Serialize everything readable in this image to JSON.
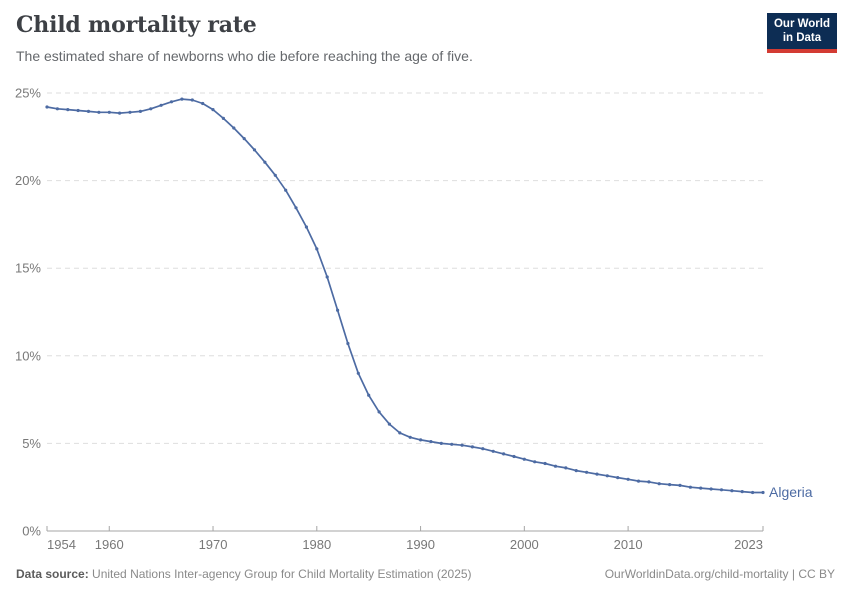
{
  "header": {
    "title": "Child mortality rate",
    "subtitle": "The estimated share of newborns who die before reaching the age of five."
  },
  "logo": {
    "line1": "Our World",
    "line2": "in Data"
  },
  "footer": {
    "source_label": "Data source:",
    "source_text": "United Nations Inter-agency Group for Child Mortality Estimation (2025)",
    "link_text": "OurWorldinData.org/child-mortality | CC BY"
  },
  "colors": {
    "line": "#4d6ba3",
    "gridline": "#dedede",
    "axis": "#a5a5a5",
    "tick_label": "#787878",
    "title": "#3d4045",
    "subtitle": "#65686c",
    "logo_bg": "#0d2d54",
    "logo_red": "#d33b33"
  },
  "chart_data": {
    "type": "line",
    "title": "Child mortality rate",
    "subtitle": "The estimated share of newborns who die before reaching the age of five.",
    "xlabel": "",
    "ylabel": "",
    "grid": "horizontal-dashed",
    "legend": "end-of-line-label",
    "xlim": [
      1954,
      2023
    ],
    "ylim": [
      0,
      25
    ],
    "yticks": [
      {
        "value": 0,
        "label": "0%"
      },
      {
        "value": 5,
        "label": "5%"
      },
      {
        "value": 10,
        "label": "10%"
      },
      {
        "value": 15,
        "label": "15%"
      },
      {
        "value": 20,
        "label": "20%"
      },
      {
        "value": 25,
        "label": "25%"
      }
    ],
    "xticks": [
      {
        "year": 1954,
        "label": "1954",
        "align": "start"
      },
      {
        "year": 1960,
        "label": "1960",
        "align": "middle"
      },
      {
        "year": 1970,
        "label": "1970",
        "align": "middle"
      },
      {
        "year": 1980,
        "label": "1980",
        "align": "middle"
      },
      {
        "year": 1990,
        "label": "1990",
        "align": "middle"
      },
      {
        "year": 2000,
        "label": "2000",
        "align": "middle"
      },
      {
        "year": 2010,
        "label": "2010",
        "align": "middle"
      },
      {
        "year": 2023,
        "label": "2023",
        "align": "end"
      }
    ],
    "series": [
      {
        "name": "Algeria",
        "color": "#4d6ba3",
        "unit": "%",
        "x": [
          1954,
          1955,
          1956,
          1957,
          1958,
          1959,
          1960,
          1961,
          1962,
          1963,
          1964,
          1965,
          1966,
          1967,
          1968,
          1969,
          1970,
          1971,
          1972,
          1973,
          1974,
          1975,
          1976,
          1977,
          1978,
          1979,
          1980,
          1981,
          1982,
          1983,
          1984,
          1985,
          1986,
          1987,
          1988,
          1989,
          1990,
          1991,
          1992,
          1993,
          1994,
          1995,
          1996,
          1997,
          1998,
          1999,
          2000,
          2001,
          2002,
          2003,
          2004,
          2005,
          2006,
          2007,
          2008,
          2009,
          2010,
          2011,
          2012,
          2013,
          2014,
          2015,
          2016,
          2017,
          2018,
          2019,
          2020,
          2021,
          2022,
          2023
        ],
        "values": [
          24.2,
          24.1,
          24.05,
          24.0,
          23.95,
          23.9,
          23.9,
          23.85,
          23.9,
          23.95,
          24.1,
          24.3,
          24.5,
          24.65,
          24.6,
          24.4,
          24.05,
          23.55,
          23.0,
          22.4,
          21.75,
          21.05,
          20.3,
          19.45,
          18.45,
          17.35,
          16.1,
          14.5,
          12.6,
          10.7,
          9.0,
          7.75,
          6.8,
          6.1,
          5.6,
          5.35,
          5.2,
          5.1,
          5.0,
          4.95,
          4.9,
          4.8,
          4.7,
          4.55,
          4.4,
          4.25,
          4.1,
          3.95,
          3.85,
          3.7,
          3.6,
          3.45,
          3.35,
          3.25,
          3.15,
          3.05,
          2.95,
          2.85,
          2.8,
          2.7,
          2.65,
          2.6,
          2.5,
          2.45,
          2.4,
          2.35,
          2.3,
          2.25,
          2.2,
          2.2
        ]
      }
    ]
  }
}
